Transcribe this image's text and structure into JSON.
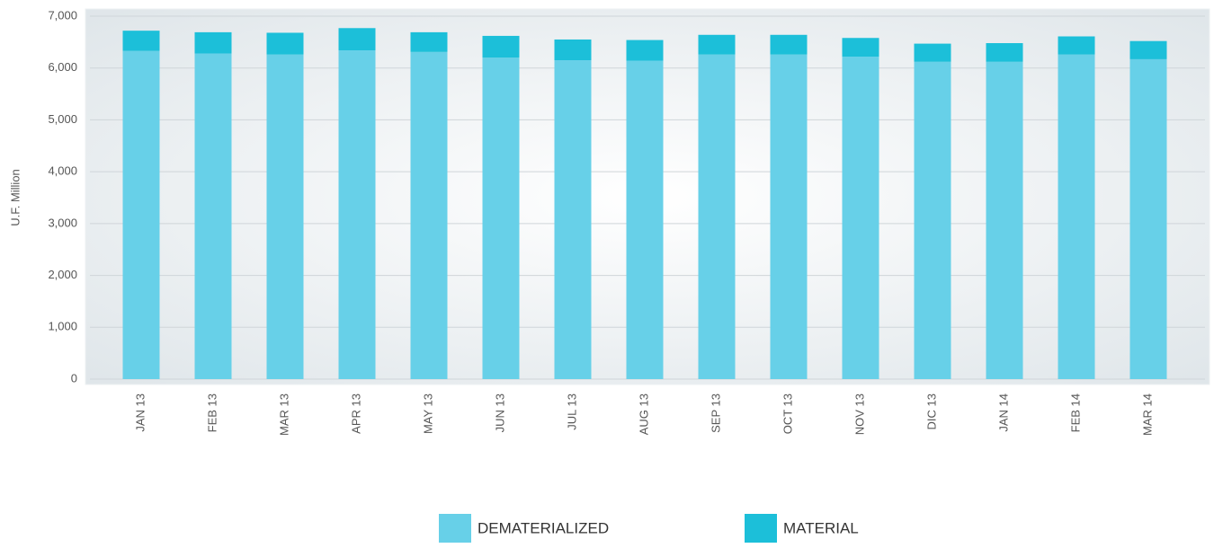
{
  "chart_data": {
    "type": "stacked_bar",
    "y_label": "U.F. Million",
    "categories": [
      "JAN 13",
      "FEB 13",
      "MAR 13",
      "APR 13",
      "MAY 13",
      "JUN 13",
      "JUL 13",
      "AUG 13",
      "SEP 13",
      "OCT 13",
      "NOV 13",
      "DIC 13",
      "JAN 14",
      "FEB 14",
      "MAR 14"
    ],
    "series": [
      {
        "name": "DEMATERIALIZED",
        "color": "#67d0e8",
        "values": [
          6330,
          6280,
          6260,
          6340,
          6310,
          6200,
          6150,
          6140,
          6260,
          6260,
          6220,
          6120,
          6120,
          6260,
          6170
        ]
      },
      {
        "name": "MATERIAL",
        "color": "#1cbfd9",
        "values": [
          390,
          410,
          420,
          430,
          380,
          420,
          400,
          400,
          380,
          380,
          360,
          350,
          360,
          350,
          350
        ]
      }
    ],
    "ylim": [
      0,
      7000
    ],
    "yticks": [
      0,
      {
        "value": 1000,
        "label": "1,000"
      },
      {
        "value": 2000,
        "label": "2,000"
      },
      {
        "value": 3000,
        "label": "3,000"
      },
      {
        "value": 4000,
        "label": "4,000"
      },
      {
        "value": 5000,
        "label": "5,000"
      },
      {
        "value": 6000,
        "label": "6,000"
      },
      {
        "value": 7000,
        "label": "7,000"
      }
    ],
    "grid": true,
    "legend": "bottom"
  }
}
